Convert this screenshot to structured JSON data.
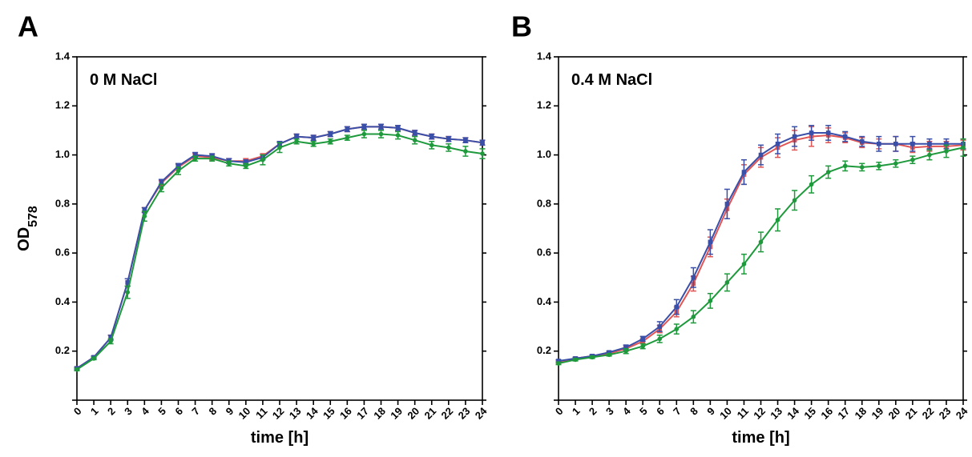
{
  "chart_data": [
    {
      "type": "line",
      "panel_letter": "A",
      "annotation": "0 M NaCl",
      "ylabel": "OD",
      "ylabel_subscript": "578",
      "xlabel": "time [h]",
      "x": [
        0,
        1,
        2,
        3,
        4,
        5,
        6,
        7,
        8,
        9,
        10,
        11,
        12,
        13,
        14,
        15,
        16,
        17,
        18,
        19,
        20,
        21,
        22,
        23,
        24
      ],
      "xlim": [
        0,
        24
      ],
      "ylim": [
        0,
        1.4
      ],
      "yticks": [
        0.2,
        0.4,
        0.6,
        0.8,
        1.0,
        1.2,
        1.4
      ],
      "ytick_labels": [
        "0.2",
        "0.4",
        "0.6",
        "0.8",
        "1.0",
        "1.2",
        "1.4"
      ],
      "grid": false,
      "series": [
        {
          "color": "#e05555",
          "marker": "square",
          "values": [
            0.13,
            0.175,
            0.255,
            0.48,
            0.775,
            0.885,
            0.95,
            0.995,
            0.99,
            0.975,
            0.975,
            0.995,
            1.045,
            1.075,
            1.07,
            1.085,
            1.105,
            1.115,
            1.115,
            1.11,
            1.09,
            1.075,
            1.065,
            1.06,
            1.05
          ],
          "errors": [
            0.005,
            0.005,
            0.01,
            0.015,
            0.01,
            0.01,
            0.01,
            0.01,
            0.01,
            0.01,
            0.01,
            0.01,
            0.01,
            0.01,
            0.01,
            0.01,
            0.01,
            0.01,
            0.01,
            0.01,
            0.01,
            0.01,
            0.01,
            0.01,
            0.01
          ]
        },
        {
          "color": "#3a4fa8",
          "marker": "square",
          "values": [
            0.13,
            0.175,
            0.255,
            0.48,
            0.775,
            0.89,
            0.955,
            1.0,
            0.995,
            0.975,
            0.97,
            0.99,
            1.045,
            1.075,
            1.07,
            1.085,
            1.105,
            1.115,
            1.115,
            1.11,
            1.09,
            1.075,
            1.065,
            1.06,
            1.05
          ],
          "errors": [
            0.005,
            0.005,
            0.01,
            0.015,
            0.01,
            0.01,
            0.01,
            0.01,
            0.01,
            0.01,
            0.01,
            0.01,
            0.01,
            0.01,
            0.01,
            0.01,
            0.01,
            0.01,
            0.01,
            0.01,
            0.01,
            0.01,
            0.01,
            0.01,
            0.01
          ]
        },
        {
          "color": "#1e9a3c",
          "marker": "circle",
          "values": [
            0.125,
            0.17,
            0.24,
            0.44,
            0.75,
            0.865,
            0.935,
            0.985,
            0.985,
            0.965,
            0.955,
            0.98,
            1.03,
            1.055,
            1.045,
            1.055,
            1.07,
            1.085,
            1.085,
            1.08,
            1.06,
            1.04,
            1.03,
            1.015,
            1.005
          ],
          "errors": [
            0.005,
            0.005,
            0.01,
            0.025,
            0.02,
            0.015,
            0.015,
            0.01,
            0.01,
            0.01,
            0.01,
            0.02,
            0.02,
            0.01,
            0.01,
            0.01,
            0.01,
            0.015,
            0.015,
            0.015,
            0.015,
            0.015,
            0.015,
            0.02,
            0.02
          ]
        }
      ]
    },
    {
      "type": "line",
      "panel_letter": "B",
      "annotation": "0.4 M NaCl",
      "ylabel": "",
      "xlabel": "time [h]",
      "x": [
        0,
        1,
        2,
        3,
        4,
        5,
        6,
        7,
        8,
        9,
        10,
        11,
        12,
        13,
        14,
        15,
        16,
        17,
        18,
        19,
        20,
        21,
        22,
        23,
        24
      ],
      "xlim": [
        0,
        24
      ],
      "ylim": [
        0,
        1.4
      ],
      "yticks": [
        0.2,
        0.4,
        0.6,
        0.8,
        1.0,
        1.2,
        1.4
      ],
      "ytick_labels": [
        "0.2",
        "0.4",
        "0.6",
        "0.8",
        "1.0",
        "1.2",
        "1.4"
      ],
      "grid": false,
      "series": [
        {
          "color": "#e05555",
          "marker": "square",
          "values": [
            0.155,
            0.17,
            0.18,
            0.19,
            0.21,
            0.24,
            0.29,
            0.36,
            0.475,
            0.625,
            0.78,
            0.92,
            0.99,
            1.03,
            1.06,
            1.075,
            1.08,
            1.07,
            1.05,
            1.045,
            1.045,
            1.03,
            1.035,
            1.035,
            1.04
          ],
          "errors": [
            0.005,
            0.005,
            0.005,
            0.005,
            0.01,
            0.01,
            0.015,
            0.02,
            0.03,
            0.04,
            0.04,
            0.04,
            0.04,
            0.04,
            0.04,
            0.04,
            0.03,
            0.02,
            0.02,
            0.02,
            0.03,
            0.02,
            0.02,
            0.02,
            0.02
          ]
        },
        {
          "color": "#3a4fa8",
          "marker": "square",
          "values": [
            0.16,
            0.17,
            0.18,
            0.195,
            0.215,
            0.25,
            0.3,
            0.38,
            0.5,
            0.645,
            0.8,
            0.93,
            1.0,
            1.045,
            1.075,
            1.09,
            1.09,
            1.075,
            1.055,
            1.045,
            1.045,
            1.045,
            1.045,
            1.045,
            1.045
          ],
          "errors": [
            0.005,
            0.005,
            0.005,
            0.005,
            0.01,
            0.01,
            0.02,
            0.03,
            0.04,
            0.05,
            0.06,
            0.05,
            0.04,
            0.04,
            0.04,
            0.03,
            0.03,
            0.02,
            0.02,
            0.03,
            0.03,
            0.03,
            0.02,
            0.02,
            0.02
          ]
        },
        {
          "color": "#1e9a3c",
          "marker": "circle",
          "values": [
            0.15,
            0.165,
            0.175,
            0.185,
            0.2,
            0.22,
            0.25,
            0.29,
            0.34,
            0.405,
            0.48,
            0.555,
            0.645,
            0.735,
            0.815,
            0.88,
            0.93,
            0.955,
            0.95,
            0.955,
            0.965,
            0.98,
            1.0,
            1.015,
            1.03
          ],
          "errors": [
            0.005,
            0.005,
            0.005,
            0.005,
            0.01,
            0.01,
            0.015,
            0.02,
            0.025,
            0.03,
            0.035,
            0.04,
            0.04,
            0.045,
            0.04,
            0.035,
            0.025,
            0.02,
            0.015,
            0.015,
            0.015,
            0.015,
            0.02,
            0.025,
            0.035
          ]
        }
      ]
    }
  ]
}
